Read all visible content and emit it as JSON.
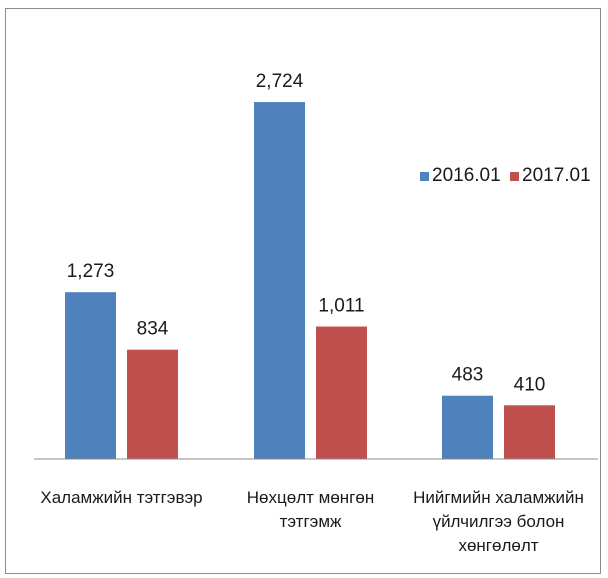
{
  "chart_data": {
    "type": "bar",
    "title": "",
    "xlabel": "",
    "ylabel": "",
    "categories": [
      [
        "Халамжийн тэтгэвэр"
      ],
      [
        "Нөхцөлт мөнгөн",
        "тэтгэмж"
      ],
      [
        "Нийгмийн халамжийн",
        "үйлчилгээ болон",
        "хөнгөлөлт"
      ]
    ],
    "series": [
      {
        "name": "2016.01",
        "color": "#4f81bd",
        "values": [
          1273,
          2724,
          483
        ],
        "labels": [
          "1,273",
          "2,724",
          "483"
        ]
      },
      {
        "name": "2017.01",
        "color": "#c0504d",
        "values": [
          834,
          1011,
          410
        ],
        "labels": [
          "834",
          "1,011",
          "410"
        ]
      }
    ],
    "ylim": [
      0,
      2900
    ],
    "grid": false,
    "legend": "right"
  }
}
